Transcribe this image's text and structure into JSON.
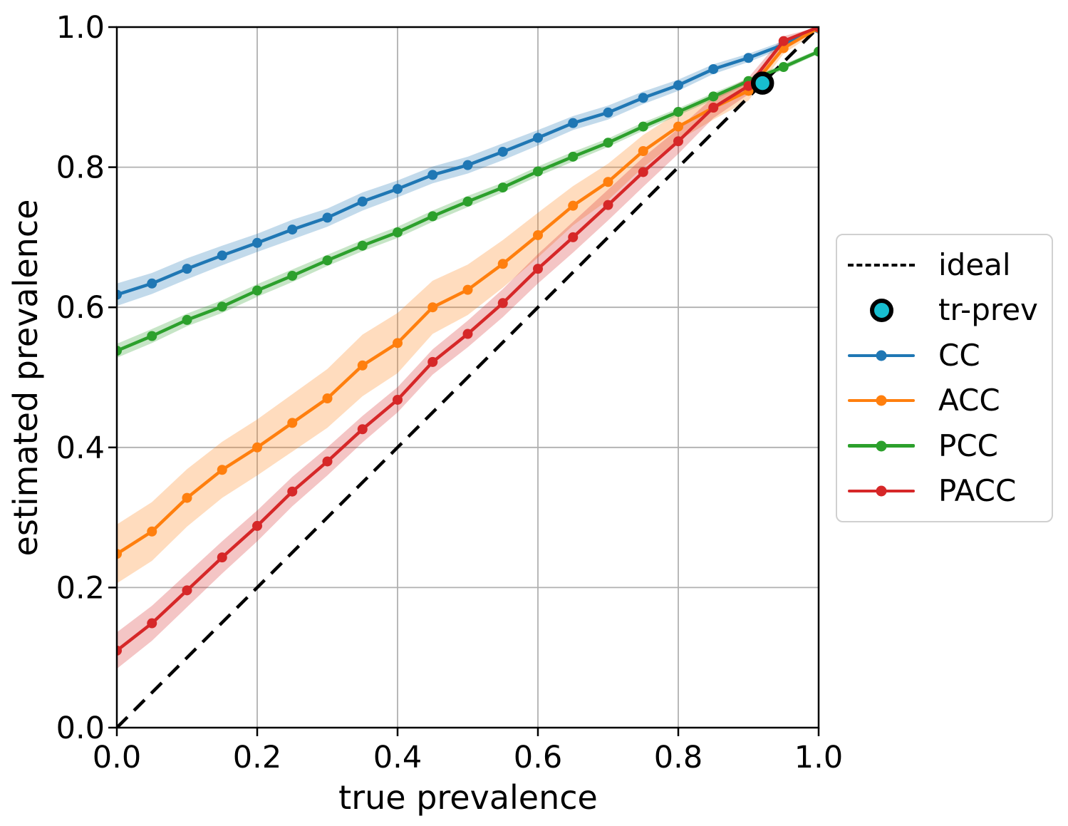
{
  "chart_data": {
    "type": "line",
    "title": "",
    "xlabel": "true prevalence",
    "ylabel": "estimated prevalence",
    "xlim": [
      0.0,
      1.0
    ],
    "ylim": [
      0.0,
      1.0
    ],
    "grid": true,
    "grid_color": "#b0b0b0",
    "legend_position": "center right, outside axes",
    "x_ticks": [
      {
        "v": 0.0,
        "label": "0.0"
      },
      {
        "v": 0.2,
        "label": "0.2"
      },
      {
        "v": 0.4,
        "label": "0.4"
      },
      {
        "v": 0.6,
        "label": "0.6"
      },
      {
        "v": 0.8,
        "label": "0.8"
      },
      {
        "v": 1.0,
        "label": "1.0"
      }
    ],
    "y_ticks": [
      {
        "v": 0.0,
        "label": "0.0"
      },
      {
        "v": 0.2,
        "label": "0.2"
      },
      {
        "v": 0.4,
        "label": "0.4"
      },
      {
        "v": 0.6,
        "label": "0.6"
      },
      {
        "v": 0.8,
        "label": "0.8"
      },
      {
        "v": 1.0,
        "label": "1.0"
      }
    ],
    "x": [
      0.0,
      0.05,
      0.1,
      0.15,
      0.2,
      0.25,
      0.3,
      0.35,
      0.4,
      0.45,
      0.5,
      0.55,
      0.6,
      0.65,
      0.7,
      0.75,
      0.8,
      0.85,
      0.9,
      0.95,
      1.0
    ],
    "series": [
      {
        "name": "CC",
        "color": "#1f77b4",
        "values": [
          0.618,
          0.634,
          0.655,
          0.674,
          0.692,
          0.711,
          0.728,
          0.751,
          0.769,
          0.789,
          0.803,
          0.822,
          0.842,
          0.863,
          0.878,
          0.899,
          0.917,
          0.94,
          0.956,
          0.975,
          0.998
        ],
        "band": [
          0.016,
          0.015,
          0.015,
          0.014,
          0.013,
          0.014,
          0.013,
          0.013,
          0.012,
          0.012,
          0.012,
          0.012,
          0.011,
          0.01,
          0.01,
          0.009,
          0.008,
          0.007,
          0.006,
          0.005,
          0.003
        ]
      },
      {
        "name": "ACC",
        "color": "#ff7f0e",
        "values": [
          0.248,
          0.28,
          0.328,
          0.368,
          0.4,
          0.435,
          0.47,
          0.517,
          0.549,
          0.6,
          0.625,
          0.662,
          0.703,
          0.745,
          0.779,
          0.823,
          0.858,
          0.885,
          0.909,
          0.97,
          0.999
        ],
        "band": [
          0.042,
          0.042,
          0.041,
          0.04,
          0.04,
          0.041,
          0.042,
          0.044,
          0.043,
          0.038,
          0.036,
          0.034,
          0.032,
          0.028,
          0.026,
          0.023,
          0.02,
          0.017,
          0.014,
          0.008,
          0.004
        ]
      },
      {
        "name": "PCC",
        "color": "#2ca02c",
        "values": [
          0.538,
          0.559,
          0.582,
          0.601,
          0.624,
          0.645,
          0.667,
          0.688,
          0.707,
          0.73,
          0.751,
          0.771,
          0.794,
          0.815,
          0.835,
          0.858,
          0.879,
          0.901,
          0.923,
          0.943,
          0.965
        ],
        "band": [
          0.01,
          0.01,
          0.009,
          0.009,
          0.009,
          0.009,
          0.008,
          0.008,
          0.008,
          0.008,
          0.008,
          0.007,
          0.007,
          0.007,
          0.006,
          0.006,
          0.005,
          0.005,
          0.004,
          0.004,
          0.003
        ]
      },
      {
        "name": "PACC",
        "color": "#d62728",
        "values": [
          0.11,
          0.149,
          0.196,
          0.243,
          0.288,
          0.337,
          0.38,
          0.426,
          0.468,
          0.522,
          0.562,
          0.606,
          0.655,
          0.7,
          0.746,
          0.793,
          0.837,
          0.885,
          0.916,
          0.98,
          1.0
        ],
        "band": [
          0.026,
          0.025,
          0.024,
          0.023,
          0.022,
          0.021,
          0.02,
          0.019,
          0.018,
          0.018,
          0.019,
          0.02,
          0.021,
          0.022,
          0.022,
          0.021,
          0.018,
          0.015,
          0.012,
          0.007,
          0.003
        ]
      }
    ],
    "ideal": {
      "label": "ideal",
      "style": "dashed",
      "color": "#000000",
      "from": [
        0.0,
        0.0
      ],
      "to": [
        1.0,
        1.0
      ]
    },
    "tr_prev": {
      "label": "tr-prev",
      "x": 0.92,
      "y": 0.92,
      "fill": "#17becf",
      "edge": "#000000"
    }
  },
  "legend": {
    "entries": [
      {
        "label": "ideal",
        "type": "dashed-line",
        "color": "#000000"
      },
      {
        "label": "tr-prev",
        "type": "circle",
        "color": "#17becf",
        "edge": "#000000"
      },
      {
        "label": "CC",
        "type": "line-marker",
        "color": "#1f77b4"
      },
      {
        "label": "ACC",
        "type": "line-marker",
        "color": "#ff7f0e"
      },
      {
        "label": "PCC",
        "type": "line-marker",
        "color": "#2ca02c"
      },
      {
        "label": "PACC",
        "type": "line-marker",
        "color": "#d62728"
      }
    ]
  }
}
